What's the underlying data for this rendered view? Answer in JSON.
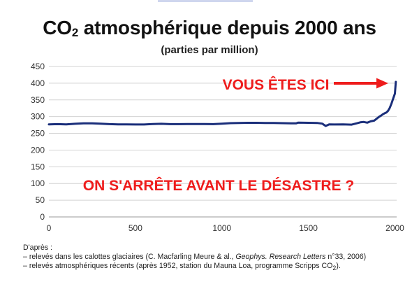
{
  "title": {
    "main": "CO",
    "subscript": "2",
    "rest": " atmosphérique depuis 2000 ans"
  },
  "subtitle": "(parties par million)",
  "annotations": {
    "here": "VOUS ÊTES ICI",
    "question": "ON S'ARRÊTE AVANT LE DÉSASTRE ?"
  },
  "colors": {
    "line": "#1a2e7a",
    "annotation": "#ee1c1c",
    "grid": "#d3d3d3"
  },
  "source": {
    "heading": "D'après :",
    "line1": {
      "prefix": "– relevés dans les calottes glaciaires (C. Macfarling Meure & al., ",
      "journal": "Geophys. Research Letters",
      "suffix": " n°33, 2006)"
    },
    "line2": {
      "prefix": "– relevés atmosphériques récents (après 1952, station du Mauna Loa, programme Scripps CO",
      "sub": "2",
      "suffix": ")."
    }
  },
  "chart_data": {
    "type": "line",
    "title": "CO2 atmosphérique depuis 2000 ans",
    "subtitle": "(parties par million)",
    "xlabel": "",
    "ylabel": "",
    "xlim": [
      0,
      2010
    ],
    "ylim": [
      0,
      450
    ],
    "xticks": [
      0,
      500,
      1000,
      1500,
      2000
    ],
    "yticks": [
      0,
      50,
      100,
      150,
      200,
      250,
      300,
      350,
      400,
      450
    ],
    "grid": "horizontal",
    "legend": "none",
    "series": [
      {
        "x": [
          0,
          50,
          100,
          150,
          200,
          250,
          300,
          350,
          400,
          450,
          500,
          550,
          600,
          650,
          700,
          750,
          800,
          850,
          900,
          950,
          1000,
          1050,
          1100,
          1150,
          1200,
          1250,
          1300,
          1350,
          1400,
          1430,
          1440,
          1500,
          1550,
          1580,
          1600,
          1620,
          1650,
          1700,
          1750,
          1780,
          1800,
          1820,
          1840,
          1860,
          1880,
          1900,
          1910,
          1920,
          1930,
          1940,
          1950,
          1960,
          1970,
          1980,
          1990,
          2000,
          2005
        ],
        "y": [
          277,
          277.5,
          277,
          278.5,
          280,
          280,
          279,
          277.5,
          277,
          277,
          276.5,
          276.5,
          278,
          278.5,
          277.5,
          277.5,
          278,
          278,
          278,
          277.5,
          279,
          280.5,
          281,
          281.5,
          281.5,
          281,
          281,
          280.5,
          280,
          280,
          282,
          281.5,
          281,
          279,
          272,
          277,
          276.5,
          277,
          276,
          280,
          283,
          284,
          282,
          286,
          288,
          296,
          300,
          303,
          307,
          310,
          312,
          317,
          326,
          339,
          354,
          369,
          404
        ]
      }
    ]
  }
}
